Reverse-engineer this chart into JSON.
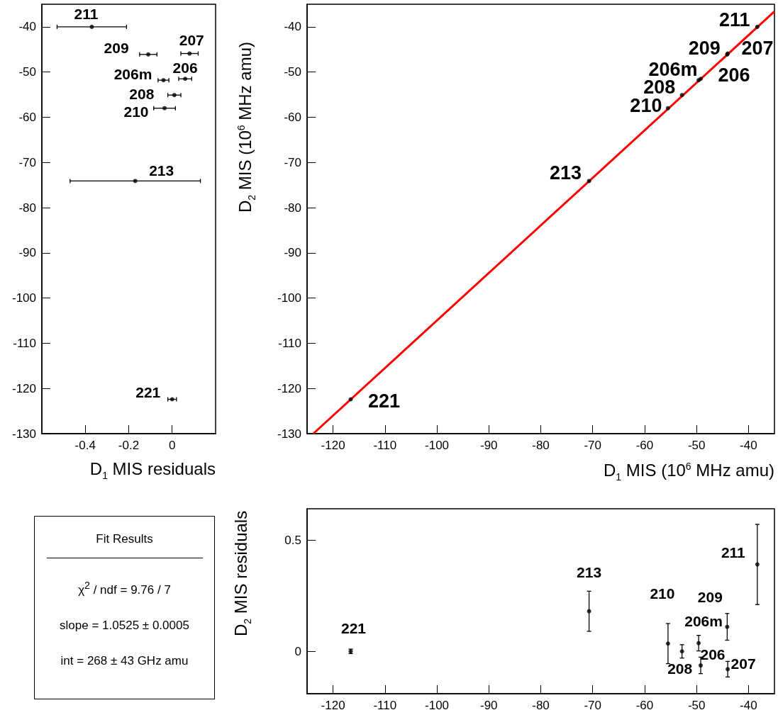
{
  "chart_data": [
    {
      "type": "scatter",
      "xlabel": "D$_{1}$ MIS residuals",
      "xlim": [
        -0.6,
        0.2
      ],
      "xticks": [
        -0.4,
        -0.2,
        0
      ],
      "ylim": [
        -130,
        -35
      ],
      "yticks": [
        -40,
        -50,
        -60,
        -70,
        -80,
        -90,
        -100,
        -110,
        -120,
        -130
      ],
      "grid": false,
      "marker": "circle",
      "series": [
        {
          "color": "#000000",
          "x": [
            -0.37,
            -0.11,
            0.08,
            0.06,
            -0.04,
            0.01,
            -0.035,
            -0.17,
            0.0
          ],
          "values": [
            -40,
            -46.1,
            -45.9,
            -51.5,
            -51.8,
            -55.1,
            -58.0,
            -74.1,
            -122.4
          ],
          "xerrors": [
            0.16,
            0.04,
            0.04,
            0.03,
            0.025,
            0.03,
            0.05,
            0.3,
            0.02
          ]
        }
      ],
      "annotations": [
        {
          "text": "211",
          "x": -0.37,
          "y": -40
        },
        {
          "text": "209",
          "x": -0.11,
          "y": -46.1
        },
        {
          "text": "207",
          "x": 0.08,
          "y": -45.9
        },
        {
          "text": "206",
          "x": 0.06,
          "y": -51.5
        },
        {
          "text": "206m",
          "x": -0.04,
          "y": -51.8
        },
        {
          "text": "208",
          "x": 0.01,
          "y": -55.1
        },
        {
          "text": "210",
          "x": -0.035,
          "y": -58.0
        },
        {
          "text": "213",
          "x": -0.17,
          "y": -74.1
        },
        {
          "text": "221",
          "x": 0.0,
          "y": -122.4
        }
      ]
    },
    {
      "type": "scatter",
      "xlabel": "D$_{1}$ MIS (10$^{6}$ MHz amu)",
      "ylabel": "D$_{2}$ MIS (10$^{6}$ MHz amu)",
      "xlim": [
        -125,
        -35
      ],
      "xticks": [
        -120,
        -110,
        -100,
        -90,
        -80,
        -70,
        -60,
        -50,
        -40
      ],
      "ylim": [
        -130,
        -35
      ],
      "yticks": [
        -40,
        -50,
        -60,
        -70,
        -80,
        -90,
        -100,
        -110,
        -120,
        -130
      ],
      "grid": false,
      "marker": "circle",
      "series": [
        {
          "color": "#000000",
          "x": [
            -38.3,
            -44.1,
            -44.0,
            -49.2,
            -49.6,
            -52.8,
            -55.5,
            -70.7,
            -116.6
          ],
          "values": [
            -40,
            -46.1,
            -45.9,
            -51.5,
            -51.8,
            -55.1,
            -58.0,
            -74.1,
            -122.4
          ]
        },
        {
          "type": "line",
          "color": "#ff0000",
          "marker": "none",
          "x": [
            -123.8,
            -35
          ],
          "values": [
            -130,
            -36.6
          ]
        }
      ],
      "annotations": [
        {
          "text": "211",
          "x": -38.3,
          "y": -40
        },
        {
          "text": "209",
          "x": -44.1,
          "y": -46.1
        },
        {
          "text": "207",
          "x": -44.0,
          "y": -45.9
        },
        {
          "text": "206",
          "x": -49.2,
          "y": -51.5
        },
        {
          "text": "206m",
          "x": -49.6,
          "y": -51.8
        },
        {
          "text": "208",
          "x": -52.8,
          "y": -55.1
        },
        {
          "text": "210",
          "x": -55.5,
          "y": -58.0
        },
        {
          "text": "213",
          "x": -70.7,
          "y": -74.1
        },
        {
          "text": "221",
          "x": -116.6,
          "y": -122.4
        }
      ]
    },
    {
      "type": "other",
      "title": "Fit Results",
      "annotations": [
        "χ$^{2}$ / ndf = 9.76 / 7",
        "slope = 1.0525 ± 0.0005",
        "int = 268 ± 43 GHz amu"
      ]
    },
    {
      "type": "scatter",
      "ylabel": "D$_{2}$ MIS residuals",
      "xlim": [
        -125,
        -35
      ],
      "xticks": [
        -120,
        -110,
        -100,
        -90,
        -80,
        -70,
        -60,
        -50,
        -40
      ],
      "ylim": [
        -0.19,
        0.64
      ],
      "yticks": [
        0,
        0.5
      ],
      "grid": false,
      "marker": "circle",
      "series": [
        {
          "color": "#000000",
          "x": [
            -116.6,
            -70.7,
            -55.5,
            -52.8,
            -49.6,
            -49.2,
            -44.1,
            -44.0,
            -38.3
          ],
          "values": [
            0.0,
            0.18,
            0.035,
            0.0,
            0.037,
            -0.063,
            0.11,
            -0.08,
            0.39
          ],
          "errors": [
            0.01,
            0.09,
            0.09,
            0.03,
            0.035,
            0.037,
            0.06,
            0.035,
            0.18
          ]
        }
      ],
      "annotations": [
        {
          "text": "221",
          "x": -116.6,
          "y": 0.0
        },
        {
          "text": "213",
          "x": -70.7,
          "y": 0.18
        },
        {
          "text": "210",
          "x": -55.5,
          "y": 0.035
        },
        {
          "text": "208",
          "x": -52.8,
          "y": 0.0
        },
        {
          "text": "206m",
          "x": -49.6,
          "y": 0.037
        },
        {
          "text": "206",
          "x": -49.2,
          "y": -0.063
        },
        {
          "text": "209",
          "x": -44.1,
          "y": 0.11
        },
        {
          "text": "207",
          "x": -44.0,
          "y": -0.08
        },
        {
          "text": "211",
          "x": -38.3,
          "y": 0.39
        }
      ]
    }
  ]
}
